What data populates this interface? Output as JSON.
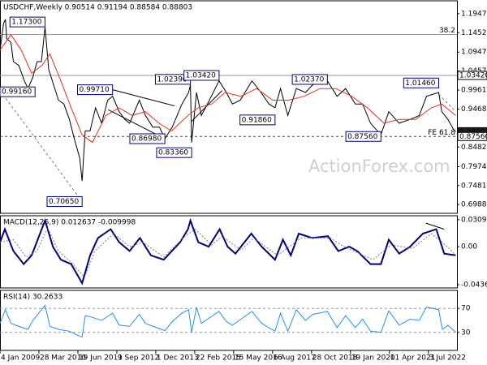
{
  "chart_data": [
    {
      "type": "line",
      "title": "USDCHF,Weekly  0.90514 0.91194 0.88584 0.88803",
      "watermark": "ActionForex.com",
      "xlim": [
        "2009-01-04",
        "2023-05-28"
      ],
      "ylim": [
        0.676,
        1.228
      ],
      "yticks": [
        1.19475,
        1.14525,
        1.09475,
        1.04575,
        {
          "value": 0.9961,
          "label": "0.99610"
        },
        {
          "value": 0.9468,
          "label": "0.94680"
        },
        {
          "value": 0.8482,
          "label": "0.84820"
        },
        {
          "value": 0.7974,
          "label": "0.79740"
        },
        {
          "value": 0.7481,
          "label": "0.74810"
        },
        0.69885
      ],
      "series": [
        {
          "color": "#000000",
          "x": [
            "2009-01-04",
            "2009-02-15",
            "2009-03-08",
            "2009-03-22",
            "2009-05-10",
            "2009-06-07",
            "2009-08-09",
            "2009-10-11",
            "2009-11-22",
            "2010-01-17",
            "2010-03-07",
            "2010-04-25",
            "2010-06-06",
            "2010-07-18",
            "2010-09-12",
            "2010-11-07",
            "2011-01-09",
            "2011-03-13",
            "2011-05-08",
            "2011-07-10",
            "2011-08-07",
            "2011-09-11",
            "2011-11-06",
            "2012-01-08",
            "2012-03-18",
            "2012-05-27",
            "2012-07-22",
            "2012-10-07",
            "2012-12-09",
            "2013-02-03",
            "2013-05-26",
            "2013-08-04",
            "2013-10-27",
            "2014-01-12",
            "2014-03-16",
            "2014-06-08",
            "2014-09-28",
            "2014-12-14",
            "2015-01-04",
            "2015-01-18",
            "2015-03-15",
            "2015-05-10",
            "2015-07-19",
            "2015-11-29",
            "2016-02-21",
            "2016-05-01",
            "2016-07-31",
            "2016-12-11",
            "2017-03-26",
            "2017-06-25",
            "2017-09-03",
            "2017-11-05",
            "2018-01-28",
            "2018-05-06",
            "2018-08-19",
            "2018-11-11",
            "2019-04-28",
            "2019-08-18",
            "2019-11-24",
            "2020-03-15",
            "2020-06-07",
            "2020-09-06",
            "2021-01-03",
            "2021-04-04",
            "2021-08-01",
            "2021-12-05",
            "2022-03-20",
            "2022-06-12",
            "2022-10-30",
            "2022-12-04",
            "2023-02-12",
            "2023-04-16",
            "2023-05-14"
          ],
          "values": [
            1.1,
            1.17,
            1.18,
            1.13,
            1.12,
            1.07,
            1.06,
            1.02,
            1.0,
            1.03,
            1.07,
            1.07,
            1.16,
            1.05,
            1.01,
            0.97,
            0.96,
            0.92,
            0.87,
            0.82,
            0.76,
            0.89,
            0.89,
            0.95,
            0.91,
            0.97,
            0.98,
            0.94,
            0.92,
            0.91,
            0.97,
            0.93,
            0.9,
            0.9,
            0.87,
            0.9,
            0.96,
            0.99,
            1.01,
            0.86,
            0.99,
            0.93,
            0.96,
            1.02,
            0.99,
            0.96,
            0.97,
            1.02,
            0.99,
            0.96,
            0.95,
            1.0,
            0.93,
            1.0,
            0.99,
            1.01,
            1.02,
            0.98,
            1.0,
            0.96,
            0.96,
            0.91,
            0.88,
            0.94,
            0.91,
            0.92,
            0.93,
            0.98,
            0.99,
            0.94,
            0.92,
            0.895,
            0.888
          ]
        },
        {
          "color": "#e8301c",
          "x": [
            "2009-01-04",
            "2009-05-10",
            "2009-09-06",
            "2010-01-03",
            "2010-05-02",
            "2010-08-01",
            "2010-12-05",
            "2011-04-03",
            "2011-08-07",
            "2011-12-04",
            "2012-05-06",
            "2012-10-07",
            "2013-03-03",
            "2013-08-04",
            "2014-01-05",
            "2014-06-01",
            "2014-12-07",
            "2015-04-05",
            "2015-09-06",
            "2016-02-07",
            "2016-08-07",
            "2017-02-05",
            "2017-08-06",
            "2018-02-04",
            "2018-08-05",
            "2019-02-03",
            "2019-08-04",
            "2020-02-02",
            "2020-08-02",
            "2021-02-07",
            "2021-08-01",
            "2022-02-06",
            "2022-08-07",
            "2022-12-04",
            "2023-05-14"
          ],
          "values": [
            1.1,
            1.14,
            1.1,
            1.04,
            1.06,
            1.09,
            1.02,
            0.95,
            0.88,
            0.86,
            0.93,
            0.95,
            0.93,
            0.94,
            0.91,
            0.89,
            0.93,
            0.95,
            0.96,
            0.99,
            0.98,
            1.0,
            0.97,
            0.97,
            0.98,
            1.0,
            1.0,
            0.98,
            0.95,
            0.91,
            0.92,
            0.92,
            0.95,
            0.96,
            0.93
          ]
        }
      ],
      "levels": [
        {
          "value": 1.1405,
          "label": "38.2"
        },
        {
          "value": 1.0342
        },
        {
          "value": 0.8756,
          "label": "FE 61.8",
          "dashed": true
        }
      ],
      "trendlines": [
        {
          "x": [
            "2009-01-04",
            "2011-08-07"
          ],
          "values": [
            0.995,
            0.7065
          ],
          "dashed": true,
          "color": "#777777"
        },
        {
          "x": [
            "2012-07-22",
            "2014-07-06"
          ],
          "values": [
            0.9971,
            0.955
          ],
          "color": "#000000"
        },
        {
          "x": [
            "2012-06-03",
            "2014-03-16"
          ],
          "values": [
            0.945,
            0.8698
          ],
          "color": "#000000"
        },
        {
          "x": [
            "2015-01-18",
            "2016-01-03"
          ],
          "values": [
            0.915,
            0.995
          ],
          "color": "#000000"
        },
        {
          "x": [
            "2022-10-30",
            "2023-05-14"
          ],
          "values": [
            0.985,
            0.94
          ],
          "dashed": true,
          "color": "#777777"
        }
      ],
      "annotations": [
        {
          "x": "2010-06-06",
          "value": 1.173,
          "label": "1.17300"
        },
        {
          "x": "2009-01-04",
          "value": 0.9916,
          "label": "0.99160"
        },
        {
          "x": "2011-08-07",
          "value": 0.7065,
          "label": "0.70650"
        },
        {
          "x": "2012-07-22",
          "value": 0.9971,
          "label": "0.99710"
        },
        {
          "x": "2014-03-16",
          "value": 0.8698,
          "label": "0.86980"
        },
        {
          "x": "2015-01-18",
          "value": 0.8336,
          "label": "0.83360"
        },
        {
          "x": "2015-01-04",
          "value": 1.0239,
          "label": "1.02390"
        },
        {
          "x": "2015-11-29",
          "value": 1.0342,
          "label": "1.03420"
        },
        {
          "x": "2017-09-03",
          "value": 0.9186,
          "label": "0.91860"
        },
        {
          "x": "2019-04-28",
          "value": 1.0237,
          "label": "1.02370"
        },
        {
          "x": "2021-01-03",
          "value": 0.8756,
          "label": "0.87560"
        },
        {
          "x": "2022-10-30",
          "value": 1.0146,
          "label": "1.01460"
        }
      ],
      "price_labels": [
        {
          "value": 1.0342,
          "label": "1.03420"
        },
        {
          "value": 0.88803,
          "label": "0.88803",
          "current": true
        },
        {
          "value": 0.8756,
          "label": "0.87560"
        }
      ]
    },
    {
      "type": "line",
      "title": "MACD(12,26,9) 0.012637 -0.009998",
      "xlim": [
        "2009-01-04",
        "2023-05-28"
      ],
      "ylim": [
        -0.0474,
        0.0355
      ],
      "yticks": [
        0.030917,
        {
          "value": 0,
          "label": "0.00"
        },
        -0.043684
      ],
      "series": [
        {
          "color": "#000080",
          "width": 2,
          "x": [
            "2009-01-04",
            "2009-03-01",
            "2009-06-07",
            "2009-10-04",
            "2010-01-03",
            "2010-06-06",
            "2010-09-05",
            "2010-12-05",
            "2011-04-03",
            "2011-08-07",
            "2011-11-06",
            "2012-02-05",
            "2012-07-01",
            "2012-10-07",
            "2013-02-03",
            "2013-06-02",
            "2013-10-06",
            "2014-03-02",
            "2014-09-07",
            "2014-12-07",
            "2015-01-04",
            "2015-04-05",
            "2015-08-02",
            "2015-12-06",
            "2016-03-06",
            "2016-06-05",
            "2016-12-04",
            "2017-04-02",
            "2017-09-03",
            "2017-12-03",
            "2018-03-04",
            "2018-06-03",
            "2018-11-04",
            "2019-05-05",
            "2019-09-01",
            "2020-01-05",
            "2020-04-05",
            "2020-09-06",
            "2021-01-03",
            "2021-04-04",
            "2021-08-01",
            "2021-12-05",
            "2022-05-01",
            "2022-10-02",
            "2023-01-01",
            "2023-05-14"
          ],
          "values": [
            0.005,
            0.02,
            -0.005,
            -0.02,
            -0.01,
            0.03,
            0.0,
            -0.015,
            -0.02,
            -0.042,
            -0.01,
            0.01,
            0.02,
            0.005,
            -0.005,
            0.01,
            -0.01,
            -0.015,
            0.005,
            0.02,
            0.03,
            0.005,
            0.0,
            0.02,
            0.0,
            -0.008,
            0.015,
            0.0,
            -0.015,
            0.008,
            -0.01,
            0.015,
            0.01,
            0.012,
            -0.005,
            0.0,
            -0.005,
            -0.02,
            -0.02,
            0.008,
            -0.008,
            0.0,
            0.015,
            0.02,
            -0.008,
            -0.01
          ]
        },
        {
          "color": "#7a7a7a",
          "dashed": true,
          "x": [
            "2009-01-04",
            "2009-06-07",
            "2009-11-01",
            "2010-03-07",
            "2010-07-04",
            "2010-11-07",
            "2011-04-03",
            "2011-09-04",
            "2012-01-01",
            "2012-08-05",
            "2013-02-03",
            "2013-07-07",
            "2014-03-02",
            "2014-11-02",
            "2015-03-01",
            "2015-09-06",
            "2016-01-03",
            "2016-08-07",
            "2017-01-01",
            "2017-10-01",
            "2018-07-01",
            "2019-06-02",
            "2019-11-03",
            "2020-10-04",
            "2021-05-02",
            "2022-01-02",
            "2022-08-07",
            "2023-02-05",
            "2023-05-14"
          ],
          "values": [
            0.005,
            0.008,
            -0.012,
            -0.005,
            0.022,
            -0.005,
            -0.018,
            -0.035,
            -0.005,
            0.015,
            0.0,
            0.005,
            -0.012,
            0.012,
            0.02,
            0.002,
            0.012,
            -0.004,
            0.01,
            -0.01,
            0.01,
            0.01,
            0.0,
            -0.015,
            0.002,
            -0.002,
            0.015,
            0.0,
            -0.01
          ]
        }
      ],
      "trendlines": [
        {
          "x": [
            "2022-06-05",
            "2023-01-01"
          ],
          "values": [
            0.027,
            0.02
          ],
          "color": "#000000"
        }
      ]
    },
    {
      "type": "line",
      "title": "RSI(14) 30.2633",
      "xlim": [
        "2009-01-04",
        "2023-05-28"
      ],
      "ylim": [
        0,
        100
      ],
      "yticks": [
        70,
        30
      ],
      "grid": true,
      "xticks": [
        {
          "value": "2009-01-04",
          "label": "4 Jan 2009"
        },
        {
          "value": "2010-03-28",
          "label": "28 Mar 2010"
        },
        {
          "value": "2011-06-19",
          "label": "19 Jun 2011"
        },
        {
          "value": "2012-09-09",
          "label": "9 Sep 2012"
        },
        {
          "value": "2013-12-01",
          "label": "1 Dec 2013"
        },
        {
          "value": "2015-02-22",
          "label": "22 Feb 2015"
        },
        {
          "value": "2016-05-15",
          "label": "15 May 2016"
        },
        {
          "value": "2017-08-06",
          "label": "6 Aug 2017"
        },
        {
          "value": "2018-10-28",
          "label": "28 Oct 2018"
        },
        {
          "value": "2020-01-19",
          "label": "19 Jan 2020"
        },
        {
          "value": "2021-04-11",
          "label": "11 Apr 2021"
        },
        {
          "value": "2022-07-03",
          "label": "3 Jul 2022"
        }
      ],
      "series": [
        {
          "color": "#1e90ff",
          "x": [
            "2009-01-04",
            "2009-03-08",
            "2009-05-10",
            "2009-08-09",
            "2009-11-22",
            "2010-01-17",
            "2010-06-06",
            "2010-08-01",
            "2010-11-07",
            "2011-03-13",
            "2011-05-08",
            "2011-08-07",
            "2011-09-11",
            "2011-12-04",
            "2012-03-18",
            "2012-07-22",
            "2012-10-07",
            "2013-02-03",
            "2013-05-26",
            "2013-08-04",
            "2013-11-03",
            "2014-03-16",
            "2014-06-08",
            "2014-09-28",
            "2014-12-14",
            "2015-01-18",
            "2015-03-15",
            "2015-05-10",
            "2015-11-29",
            "2016-02-21",
            "2016-05-01",
            "2016-12-11",
            "2017-04-02",
            "2017-09-03",
            "2017-11-05",
            "2018-01-28",
            "2018-05-06",
            "2018-08-19",
            "2018-11-11",
            "2019-04-28",
            "2019-08-18",
            "2019-11-24",
            "2020-03-15",
            "2020-06-07",
            "2020-09-06",
            "2021-01-03",
            "2021-04-04",
            "2021-08-01",
            "2021-12-05",
            "2022-03-20",
            "2022-06-12",
            "2022-10-30",
            "2022-12-11",
            "2023-02-12",
            "2023-05-14"
          ],
          "values": [
            45,
            68,
            45,
            40,
            35,
            50,
            75,
            40,
            35,
            32,
            28,
            22,
            58,
            55,
            50,
            62,
            42,
            40,
            60,
            45,
            40,
            33,
            48,
            62,
            68,
            30,
            72,
            45,
            65,
            48,
            42,
            65,
            45,
            32,
            62,
            32,
            68,
            50,
            60,
            65,
            38,
            58,
            38,
            52,
            32,
            30,
            66,
            42,
            52,
            50,
            72,
            68,
            35,
            42,
            30
          ]
        }
      ]
    }
  ]
}
